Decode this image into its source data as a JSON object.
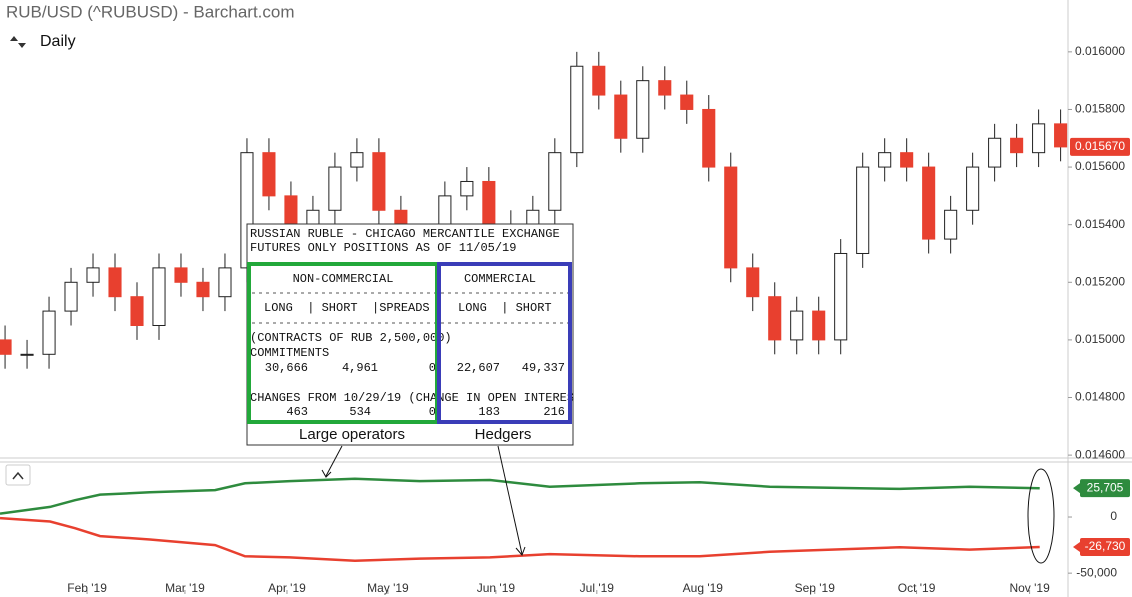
{
  "chart_data": [
    {
      "type": "candlestick",
      "title": "RUB/USD (^RUBUSD) - Barchart.com",
      "interval": "Daily",
      "up_color": "#ffffff",
      "down_color": "#e8402f",
      "open": [
        0.015,
        0.01495,
        0.01495,
        0.0151,
        0.0152,
        0.01525,
        0.01515,
        0.01505,
        0.01525,
        0.0152,
        0.01515,
        0.01525,
        0.01565,
        0.0155,
        0.0154,
        0.01545,
        0.0156,
        0.01565,
        0.01545,
        0.0153,
        0.01535,
        0.0155,
        0.01555,
        0.0154,
        0.01535,
        0.01545,
        0.01565,
        0.01595,
        0.01585,
        0.0157,
        0.0159,
        0.01585,
        0.0158,
        0.0156,
        0.01525,
        0.01515,
        0.015,
        0.0151,
        0.015,
        0.0153,
        0.0156,
        0.01565,
        0.0156,
        0.01535,
        0.01545,
        0.0156,
        0.0157,
        0.01565,
        0.01575
      ],
      "high": [
        0.01505,
        0.015,
        0.01515,
        0.01525,
        0.0153,
        0.0153,
        0.0152,
        0.0153,
        0.0153,
        0.01525,
        0.0153,
        0.0157,
        0.0157,
        0.01555,
        0.0155,
        0.01565,
        0.0157,
        0.0157,
        0.0155,
        0.0154,
        0.01555,
        0.0156,
        0.0156,
        0.01545,
        0.0155,
        0.0157,
        0.016,
        0.016,
        0.0159,
        0.01595,
        0.01595,
        0.0159,
        0.01585,
        0.01565,
        0.0153,
        0.0152,
        0.01515,
        0.01515,
        0.01535,
        0.01565,
        0.0157,
        0.0157,
        0.01565,
        0.0155,
        0.01565,
        0.01575,
        0.01575,
        0.0158,
        0.0158
      ],
      "low": [
        0.0149,
        0.0149,
        0.0149,
        0.01505,
        0.01515,
        0.0151,
        0.015,
        0.015,
        0.01515,
        0.0151,
        0.0151,
        0.0152,
        0.01545,
        0.01535,
        0.01535,
        0.0154,
        0.01555,
        0.0154,
        0.01525,
        0.01525,
        0.0153,
        0.01545,
        0.01535,
        0.0153,
        0.0153,
        0.0154,
        0.0156,
        0.0158,
        0.01565,
        0.01565,
        0.0158,
        0.01575,
        0.01555,
        0.0152,
        0.0151,
        0.01495,
        0.01495,
        0.01495,
        0.01495,
        0.01525,
        0.01555,
        0.01555,
        0.0153,
        0.0153,
        0.0154,
        0.01555,
        0.0156,
        0.0156,
        0.01562
      ],
      "close": [
        0.01495,
        0.01495,
        0.0151,
        0.0152,
        0.01525,
        0.01515,
        0.01505,
        0.01525,
        0.0152,
        0.01515,
        0.01525,
        0.01565,
        0.0155,
        0.0154,
        0.01545,
        0.0156,
        0.01565,
        0.01545,
        0.0153,
        0.01535,
        0.0155,
        0.01555,
        0.0154,
        0.01535,
        0.01545,
        0.01565,
        0.01595,
        0.01585,
        0.0157,
        0.0159,
        0.01585,
        0.0158,
        0.0156,
        0.01525,
        0.01515,
        0.015,
        0.0151,
        0.015,
        0.0153,
        0.0156,
        0.01565,
        0.0156,
        0.01535,
        0.01545,
        0.0156,
        0.0157,
        0.01565,
        0.01575,
        0.01567
      ],
      "last_value": {
        "value": 0.01567,
        "label": "0.015670"
      },
      "xlim": [
        -0.23,
        48.2
      ],
      "ylim": [
        0.01459,
        0.01618
      ],
      "yticks": [
        {
          "value": 0.0146,
          "label": "0.014600"
        },
        {
          "value": 0.0148,
          "label": "0.014800"
        },
        {
          "value": 0.015,
          "label": "0.015000"
        },
        {
          "value": 0.0152,
          "label": "0.015200"
        },
        {
          "value": 0.0154,
          "label": "0.015400"
        },
        {
          "value": 0.0156,
          "label": "0.015600"
        },
        {
          "value": 0.0158,
          "label": "0.015800"
        },
        {
          "value": 0.016,
          "label": "0.016000"
        }
      ]
    },
    {
      "type": "line",
      "x": [
        -0.23,
        2.05,
        3.18,
        4.32,
        6.59,
        9.55,
        10.91,
        12.95,
        15.91,
        18.86,
        22.05,
        24.77,
        28.86,
        31.59,
        34.77,
        40.68,
        43.86,
        47.05
      ],
      "series": [
        {
          "color": "#2e8b3e",
          "values": [
            3000,
            9000,
            15000,
            20000,
            22000,
            24000,
            30000,
            32000,
            34000,
            32000,
            33000,
            27000,
            30000,
            31000,
            27000,
            25000,
            27000,
            25705
          ],
          "last_label": "25,705"
        },
        {
          "color": "#e8402f",
          "values": [
            -1000,
            -4000,
            -10000,
            -17000,
            -20000,
            -25000,
            -35000,
            -36000,
            -39000,
            -37000,
            -36000,
            -33000,
            -35000,
            -35000,
            -31000,
            -27000,
            -29000,
            -26730
          ],
          "last_label": "-26,730"
        }
      ],
      "xlim": [
        -0.23,
        48.2
      ],
      "ylim": [
        -65000,
        49000
      ],
      "yticks": [
        0,
        {
          "value": -50000,
          "label": "-50,000"
        }
      ],
      "xticks": [
        {
          "value": 3.73,
          "label": "Feb '19"
        },
        {
          "value": 8.18,
          "label": "Mar '19"
        },
        {
          "value": 12.82,
          "label": "Apr '19"
        },
        {
          "value": 17.41,
          "label": "May '19"
        },
        {
          "value": 22.32,
          "label": "Jun '19"
        },
        {
          "value": 26.91,
          "label": "Jul '19"
        },
        {
          "value": 31.73,
          "label": "Aug '19"
        },
        {
          "value": 36.82,
          "label": "Sep '19"
        },
        {
          "value": 41.45,
          "label": "Oct '19"
        },
        {
          "value": 46.59,
          "label": "Nov '19"
        }
      ]
    }
  ],
  "cot_table": {
    "title": [
      "RUSSIAN RUBLE - CHICAGO MERCANTILE EXCHANGE",
      "FUTURES ONLY POSITIONS AS OF 11/05/19"
    ],
    "groups": [
      "NON-COMMERCIAL",
      "COMMERCIAL"
    ],
    "headers": [
      "LONG  | SHORT  |SPREADS",
      "LONG  | SHORT"
    ],
    "contracts": "(CONTRACTS OF RUB 2,500,000)",
    "commitments_label": "COMMITMENTS",
    "commitments": [
      "30,666",
      "4,961",
      "0",
      "22,607",
      "49,337"
    ],
    "changes_label": "CHANGES FROM 10/29/19 (CHANGE IN OPEN INTERES",
    "changes": [
      "463",
      "534",
      "0",
      "183",
      "216"
    ],
    "captions": [
      "Large operators",
      "Hedgers"
    ]
  }
}
